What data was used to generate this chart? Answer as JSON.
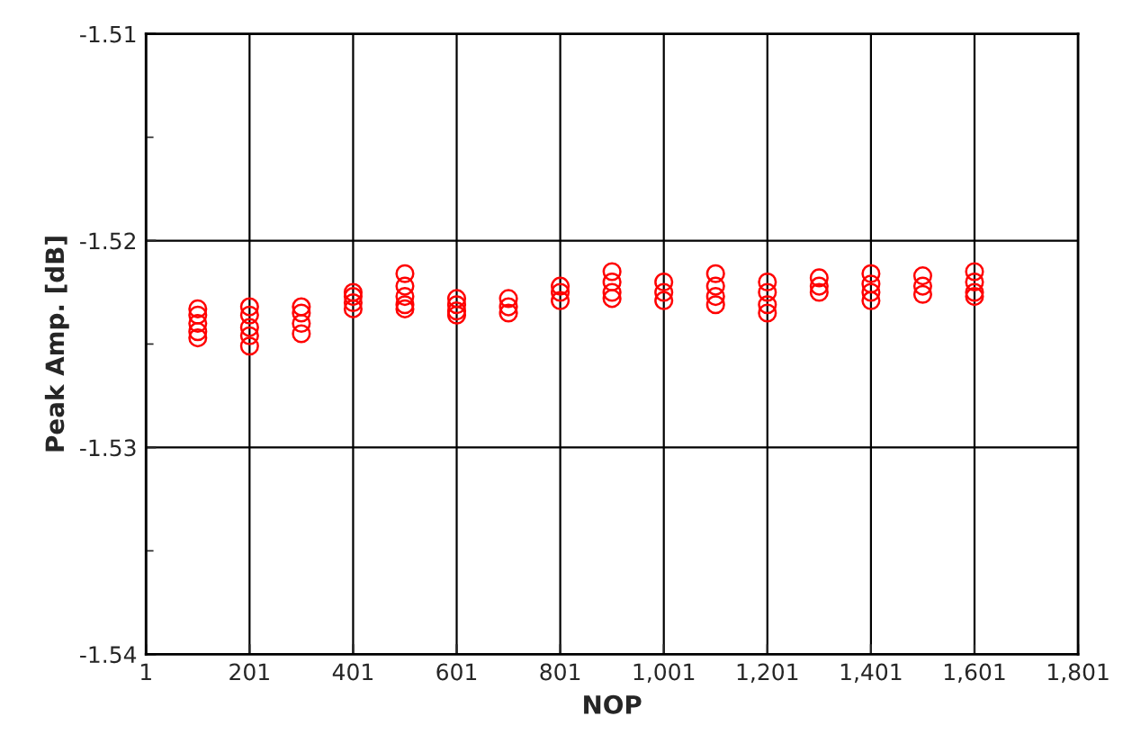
{
  "chart_data": {
    "type": "scatter",
    "xlabel": "NOP",
    "ylabel": "Peak Amp. [dB]",
    "xlim": [
      1,
      1801
    ],
    "ylim": [
      -1.54,
      -1.51
    ],
    "xticks": [
      1,
      201,
      401,
      601,
      801,
      {
        "value": 1001,
        "label": "1,001"
      },
      {
        "value": 1201,
        "label": "1,201"
      },
      {
        "value": 1401,
        "label": "1,401"
      },
      {
        "value": 1601,
        "label": "1,601"
      },
      {
        "value": 1801,
        "label": "1,801"
      }
    ],
    "yticks": [
      -1.54,
      {
        "value": -1.535,
        "label": null
      },
      -1.53,
      {
        "value": -1.525,
        "label": null
      },
      -1.52,
      {
        "value": -1.515,
        "label": null
      },
      -1.51
    ],
    "grid": true,
    "marker": "circle",
    "legend": false,
    "series": [
      {
        "color": "#ff0000",
        "x": [
          101,
          101,
          101,
          101,
          101,
          201,
          201,
          201,
          201,
          201,
          301,
          301,
          301,
          301,
          401,
          401,
          401,
          401,
          501,
          501,
          501,
          501,
          501,
          601,
          601,
          601,
          601,
          701,
          701,
          701,
          801,
          801,
          801,
          901,
          901,
          901,
          901,
          1001,
          1001,
          1001,
          1101,
          1101,
          1101,
          1101,
          1201,
          1201,
          1201,
          1201,
          1301,
          1301,
          1301,
          1401,
          1401,
          1401,
          1401,
          1501,
          1501,
          1501,
          1601,
          1601,
          1601,
          1601
        ],
        "values": [
          -1.5233,
          -1.5236,
          -1.524,
          -1.5244,
          -1.5247,
          -1.5232,
          -1.5236,
          -1.5242,
          -1.5246,
          -1.5251,
          -1.5232,
          -1.5235,
          -1.524,
          -1.5245,
          -1.5225,
          -1.5227,
          -1.523,
          -1.5233,
          -1.5216,
          -1.5222,
          -1.5227,
          -1.5231,
          -1.5233,
          -1.5228,
          -1.5231,
          -1.5234,
          -1.5236,
          -1.5228,
          -1.5232,
          -1.5235,
          -1.5222,
          -1.5225,
          -1.5229,
          -1.5215,
          -1.522,
          -1.5225,
          -1.5228,
          -1.522,
          -1.5225,
          -1.5229,
          -1.5216,
          -1.5222,
          -1.5227,
          -1.5231,
          -1.522,
          -1.5225,
          -1.5231,
          -1.5235,
          -1.5218,
          -1.5222,
          -1.5225,
          -1.5216,
          -1.5221,
          -1.5225,
          -1.5229,
          -1.5217,
          -1.5222,
          -1.5226,
          -1.5215,
          -1.522,
          -1.5225,
          -1.5227
        ]
      }
    ]
  }
}
